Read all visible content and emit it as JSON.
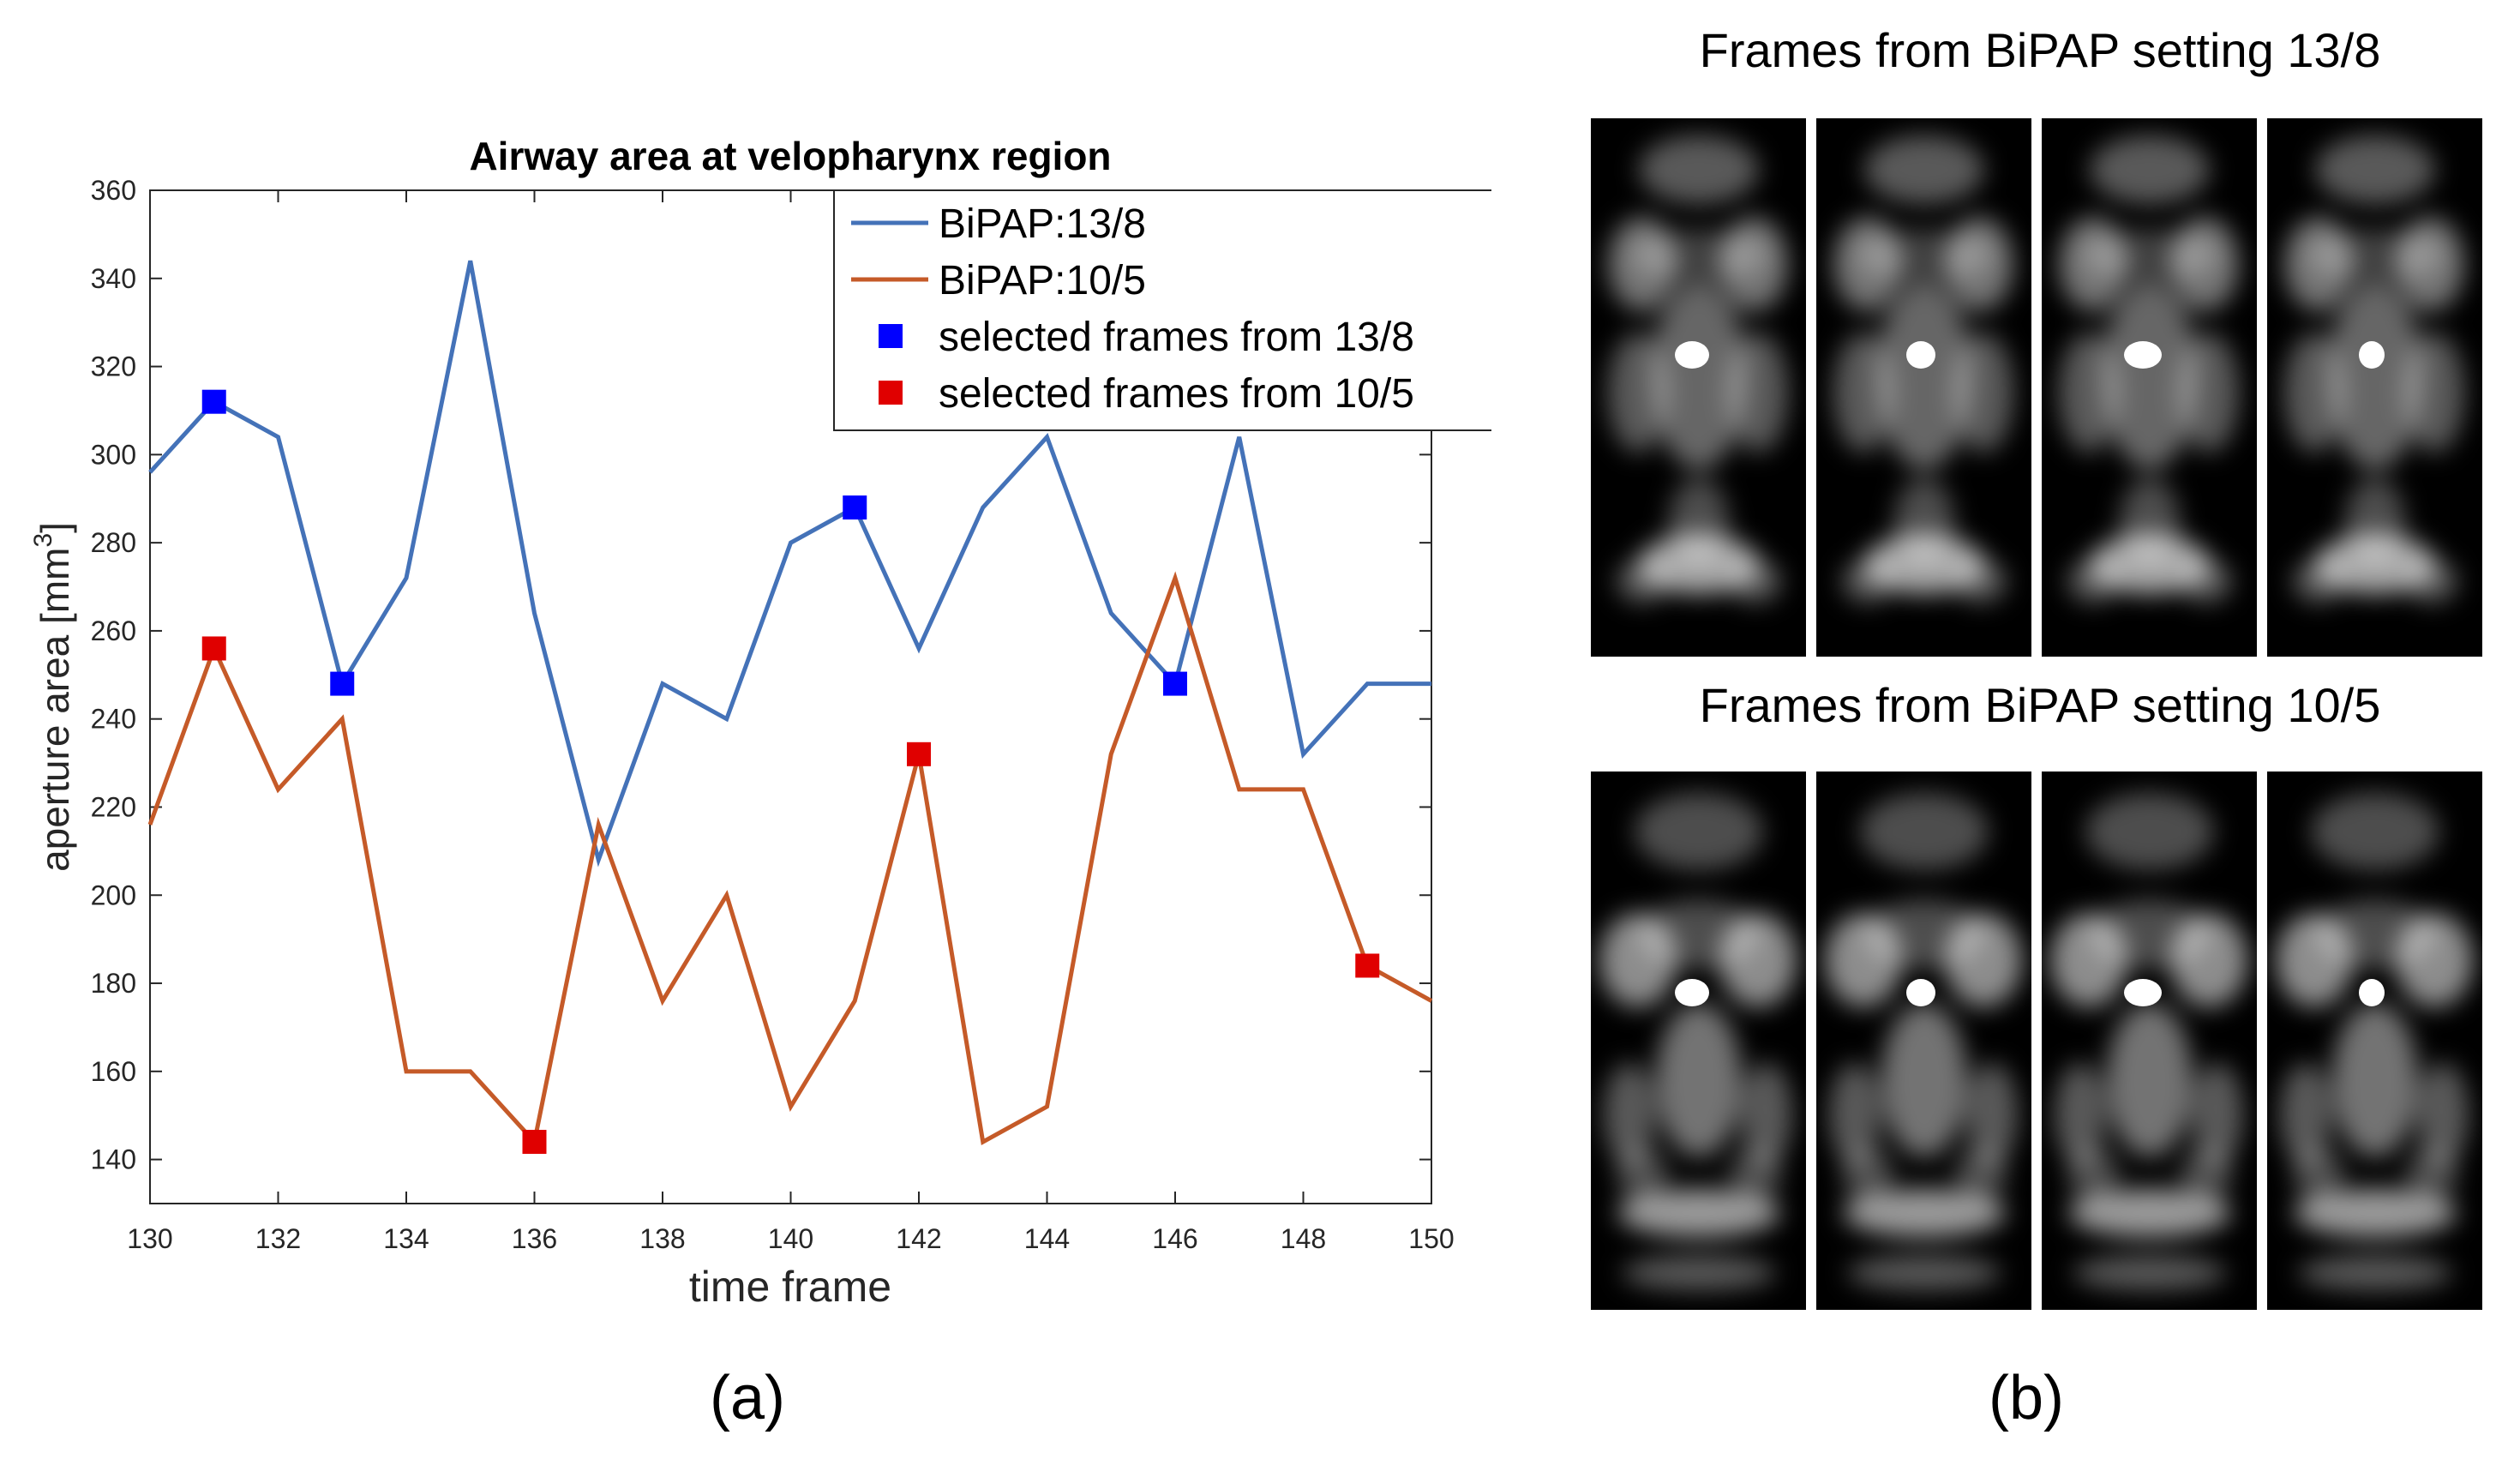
{
  "chart_data": {
    "type": "line",
    "title": "Airway area at velopharynx region",
    "xlabel": "time frame",
    "ylabel": "aperture area [mm",
    "ylabel_sup": "3",
    "ylabel_end": "]",
    "xlim": [
      130,
      150
    ],
    "ylim": [
      130,
      360
    ],
    "xticks": [
      130,
      132,
      134,
      136,
      138,
      140,
      142,
      144,
      146,
      148,
      150
    ],
    "yticks": [
      140,
      160,
      180,
      200,
      220,
      240,
      260,
      280,
      300,
      320,
      340,
      360
    ],
    "x": [
      130,
      131,
      132,
      133,
      134,
      135,
      136,
      137,
      138,
      139,
      140,
      141,
      142,
      143,
      144,
      145,
      146,
      147,
      148,
      149,
      150
    ],
    "series": [
      {
        "name": "BiPAP:13/8",
        "color": "#4472b8",
        "values": [
          296,
          312,
          304,
          248,
          272,
          344,
          264,
          208,
          248,
          240,
          280,
          288,
          256,
          288,
          304,
          264,
          248,
          304,
          232,
          248,
          248
        ]
      },
      {
        "name": "BiPAP:10/5",
        "color": "#c55a28",
        "values": [
          216,
          256,
          224,
          240,
          160,
          160,
          144,
          216,
          176,
          200,
          152,
          176,
          232,
          144,
          152,
          232,
          272,
          224,
          224,
          184,
          176
        ]
      }
    ],
    "markers": [
      {
        "name": "selected frames from 13/8",
        "color": "#0000ff",
        "points": [
          [
            131,
            312
          ],
          [
            133,
            248
          ],
          [
            141,
            288
          ],
          [
            146,
            248
          ]
        ]
      },
      {
        "name": "selected frames from 10/5",
        "color": "#e00000",
        "points": [
          [
            131,
            256
          ],
          [
            136,
            144
          ],
          [
            142,
            232
          ],
          [
            149,
            184
          ]
        ]
      }
    ],
    "legend": "top-right",
    "grid": false
  },
  "panel_labels": {
    "a": "(a)",
    "b": "(b)"
  },
  "mri": {
    "title_top": "Frames from BiPAP setting 13/8",
    "title_bottom": "Frames from BiPAP setting 10/5",
    "frame_count": 4
  }
}
